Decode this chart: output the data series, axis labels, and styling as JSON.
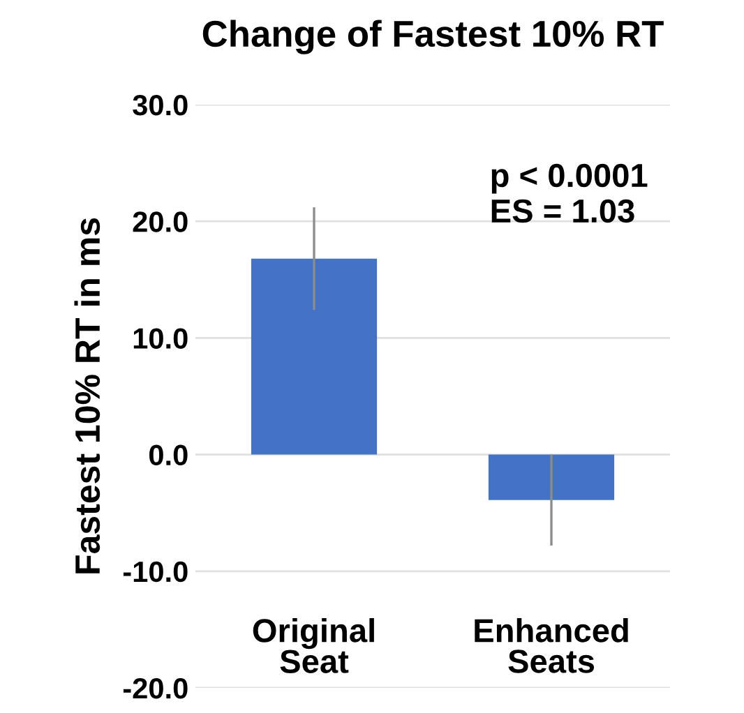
{
  "chart_data": {
    "type": "bar",
    "title": "Change of Fastest 10% RT",
    "ylabel": "Fastest 10% RT in ms",
    "categories": [
      "Original\nSeat",
      "Enhanced\nSeats"
    ],
    "values": [
      16.8,
      -3.9
    ],
    "errors": [
      4.4,
      3.9
    ],
    "color": "#4472c4",
    "ylim": [
      -20,
      30
    ],
    "yticks": [
      {
        "value": -20,
        "label": "-20.0"
      },
      {
        "value": -10,
        "label": "-10.0"
      },
      {
        "value": 0,
        "label": "0.0"
      },
      {
        "value": 10,
        "label": "10.0"
      },
      {
        "value": 20,
        "label": "20.0"
      },
      {
        "value": 30,
        "label": "30.0"
      }
    ],
    "grid": "y",
    "annotations": [
      "p < 0.0001\nES = 1.03"
    ]
  }
}
